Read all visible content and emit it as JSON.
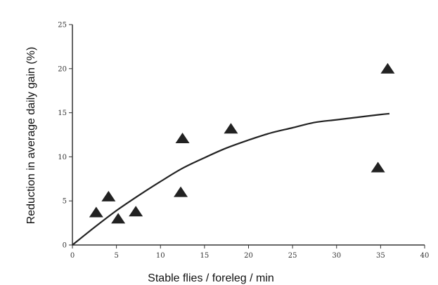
{
  "chart_data": {
    "type": "scatter",
    "title": "",
    "xlabel": "Stable flies / foreleg / min",
    "ylabel": "Reduction in average daily gain (%)",
    "xlim": [
      0,
      40
    ],
    "ylim": [
      0,
      25
    ],
    "x_ticks": [
      0,
      5,
      10,
      15,
      20,
      25,
      30,
      35,
      40
    ],
    "y_ticks": [
      0,
      5,
      10,
      15,
      20,
      25
    ],
    "grid": false,
    "legend": "none",
    "marker": "triangle",
    "marker_color": "#222222",
    "points": [
      {
        "x": 2.7,
        "y": 3.7
      },
      {
        "x": 4.1,
        "y": 5.5
      },
      {
        "x": 5.2,
        "y": 3.0
      },
      {
        "x": 7.2,
        "y": 3.8
      },
      {
        "x": 12.3,
        "y": 6.0
      },
      {
        "x": 12.5,
        "y": 12.1
      },
      {
        "x": 18.0,
        "y": 13.2
      },
      {
        "x": 34.7,
        "y": 8.8
      },
      {
        "x": 35.8,
        "y": 20.0
      }
    ],
    "fit_curve": [
      {
        "x": 0,
        "y": 0
      },
      {
        "x": 2.5,
        "y": 2.0
      },
      {
        "x": 5,
        "y": 3.9
      },
      {
        "x": 7.5,
        "y": 5.6
      },
      {
        "x": 10,
        "y": 7.2
      },
      {
        "x": 12.5,
        "y": 8.7
      },
      {
        "x": 15,
        "y": 9.9
      },
      {
        "x": 17.5,
        "y": 11.0
      },
      {
        "x": 20,
        "y": 11.9
      },
      {
        "x": 22.5,
        "y": 12.7
      },
      {
        "x": 25,
        "y": 13.3
      },
      {
        "x": 27.5,
        "y": 13.9
      },
      {
        "x": 30,
        "y": 14.2
      },
      {
        "x": 32.5,
        "y": 14.5
      },
      {
        "x": 35,
        "y": 14.8
      },
      {
        "x": 36,
        "y": 14.9
      }
    ]
  }
}
